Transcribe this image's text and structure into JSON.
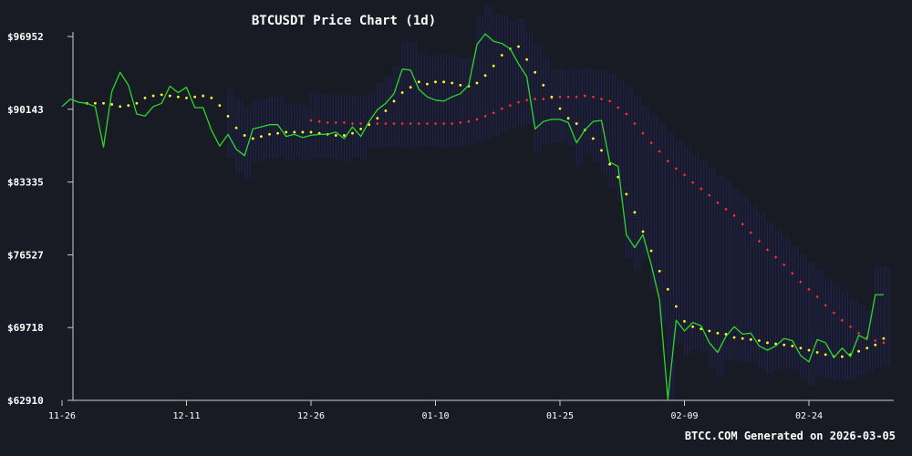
{
  "chart_data": {
    "type": "line",
    "title": "BTCUSDT Price Chart (1d)",
    "footer": "BTCC.COM Generated on 2026-03-05",
    "yticks": [
      "$96952",
      "$90143",
      "$83335",
      "$76527",
      "$69718",
      "$62910"
    ],
    "ytick_values": [
      96952,
      90143,
      83335,
      76527,
      69718,
      62910
    ],
    "ylim": [
      62910,
      96952
    ],
    "xticks": [
      "11-26",
      "12-11",
      "12-26",
      "01-10",
      "01-25",
      "02-09",
      "02-24"
    ],
    "xtick_days": [
      0,
      15,
      30,
      45,
      60,
      75,
      90
    ],
    "xlim": [
      0,
      100
    ],
    "colors": {
      "background": "#181a24",
      "price": "#2bd82b",
      "dots_short": "#ffff33",
      "dots_long": "#ff3030",
      "band": "#2a2a7a",
      "axis": "#cccccc",
      "text": "#ffffff"
    },
    "series": [
      {
        "type": "line",
        "color": "#2bd82b",
        "x": [
          0,
          1,
          2,
          3,
          4,
          5,
          6,
          7,
          8,
          9,
          10,
          11,
          12,
          13,
          14,
          15,
          16,
          17,
          18,
          19,
          20,
          21,
          22,
          23,
          24,
          25,
          26,
          27,
          28,
          29,
          30,
          31,
          32,
          33,
          34,
          35,
          36,
          37,
          38,
          39,
          40,
          41,
          42,
          43,
          44,
          45,
          46,
          47,
          48,
          49,
          50,
          51,
          52,
          53,
          54,
          55,
          56,
          57,
          58,
          59,
          60,
          61,
          62,
          63,
          64,
          65,
          66,
          67,
          68,
          69,
          70,
          71,
          72,
          73,
          74,
          75,
          76,
          77,
          78,
          79,
          80,
          81,
          82,
          83,
          84,
          85,
          86,
          87,
          88,
          89,
          90,
          91,
          92,
          93,
          94,
          95,
          96,
          97,
          98,
          99
        ],
        "y": [
          90400,
          91100,
          90800,
          90700,
          90400,
          86600,
          91800,
          93600,
          92400,
          89700,
          89500,
          90400,
          90700,
          92300,
          91700,
          92200,
          90300,
          90300,
          88200,
          86700,
          87800,
          86400,
          85800,
          88300,
          88500,
          88700,
          88700,
          87600,
          87800,
          87500,
          87700,
          87800,
          87800,
          88000,
          87400,
          88500,
          87600,
          89000,
          90100,
          90700,
          91600,
          93900,
          93800,
          92000,
          91300,
          91000,
          90900,
          91300,
          91600,
          92400,
          96200,
          97200,
          96500,
          96300,
          95800,
          94400,
          93200,
          88300,
          89000,
          89200,
          89200,
          88900,
          87000,
          88200,
          89000,
          89100,
          85200,
          84800,
          78400,
          77200,
          78400,
          75600,
          72300,
          63000,
          70400,
          69400,
          70200,
          69900,
          68300,
          67400,
          68900,
          69800,
          69100,
          69200,
          68000,
          67600,
          68000,
          68700,
          68500,
          67100,
          66500,
          68600,
          68300,
          66900,
          67800,
          67000,
          69000,
          68600,
          72800,
          72800
        ]
      },
      {
        "type": "dots",
        "color": "#ffff33",
        "x": [
          3,
          4,
          5,
          6,
          7,
          8,
          9,
          10,
          11,
          12,
          13,
          14,
          15,
          16,
          17,
          18,
          19,
          20,
          21,
          22,
          23,
          24,
          25,
          26,
          27,
          28,
          29,
          30,
          31,
          32,
          33,
          34,
          35,
          36,
          37,
          38,
          39,
          40,
          41,
          42,
          43,
          44,
          45,
          46,
          47,
          48,
          49,
          50,
          51,
          52,
          53,
          54,
          55,
          56,
          57,
          58,
          59,
          60,
          61,
          62,
          63,
          64,
          65,
          66,
          67,
          68,
          69,
          70,
          71,
          72,
          73,
          74,
          75,
          76,
          77,
          78,
          79,
          80,
          81,
          82,
          83,
          84,
          85,
          86,
          87,
          88,
          89,
          90,
          91,
          92,
          93,
          94,
          95,
          96,
          97,
          98,
          99
        ],
        "y": [
          90700,
          90700,
          90700,
          90600,
          90400,
          90500,
          90700,
          91200,
          91400,
          91500,
          91400,
          91300,
          91200,
          91300,
          91400,
          91200,
          90500,
          89500,
          88400,
          87700,
          87400,
          87600,
          87800,
          87900,
          88000,
          88000,
          88000,
          88000,
          87900,
          87800,
          87700,
          87700,
          87900,
          88300,
          88700,
          89300,
          90000,
          90900,
          91700,
          92200,
          92700,
          92500,
          92700,
          92700,
          92600,
          92400,
          92300,
          92600,
          93300,
          94200,
          95200,
          95800,
          96000,
          94800,
          93600,
          92400,
          91300,
          90200,
          89300,
          88800,
          88200,
          87400,
          86300,
          85000,
          83800,
          82200,
          80500,
          78700,
          76900,
          75000,
          73300,
          71700,
          70300,
          69800,
          69600,
          69400,
          69200,
          69100,
          68800,
          68700,
          68600,
          68500,
          68300,
          68200,
          68100,
          68000,
          67800,
          67600,
          67400,
          67200,
          67000,
          67000,
          67200,
          67500,
          67800,
          68100,
          68700
        ]
      },
      {
        "type": "dots",
        "color": "#ff3030",
        "x": [
          30,
          31,
          32,
          33,
          34,
          35,
          36,
          37,
          38,
          39,
          40,
          41,
          42,
          43,
          44,
          45,
          46,
          47,
          48,
          49,
          50,
          51,
          52,
          53,
          54,
          55,
          56,
          57,
          58,
          59,
          60,
          61,
          62,
          63,
          64,
          65,
          66,
          67,
          68,
          69,
          70,
          71,
          72,
          73,
          74,
          75,
          76,
          77,
          78,
          79,
          80,
          81,
          82,
          83,
          84,
          85,
          86,
          87,
          88,
          89,
          90,
          91,
          92,
          93,
          94,
          95,
          96,
          97,
          98,
          99
        ],
        "y": [
          89100,
          89000,
          88900,
          88900,
          88900,
          88800,
          88800,
          88800,
          88800,
          88800,
          88800,
          88800,
          88800,
          88800,
          88800,
          88800,
          88800,
          88800,
          88900,
          89000,
          89200,
          89500,
          89800,
          90200,
          90500,
          90800,
          91000,
          91100,
          91100,
          91200,
          91300,
          91300,
          91300,
          91400,
          91300,
          91100,
          90900,
          90300,
          89700,
          88800,
          87900,
          87000,
          86200,
          85300,
          84600,
          84000,
          83300,
          82700,
          82100,
          81400,
          80800,
          80200,
          79400,
          78600,
          77800,
          77000,
          76300,
          75600,
          74800,
          74000,
          73300,
          72600,
          71800,
          71100,
          70400,
          69800,
          69200,
          68800,
          68500,
          68300
        ]
      }
    ],
    "band": {
      "from": 20,
      "to": 99
    }
  }
}
